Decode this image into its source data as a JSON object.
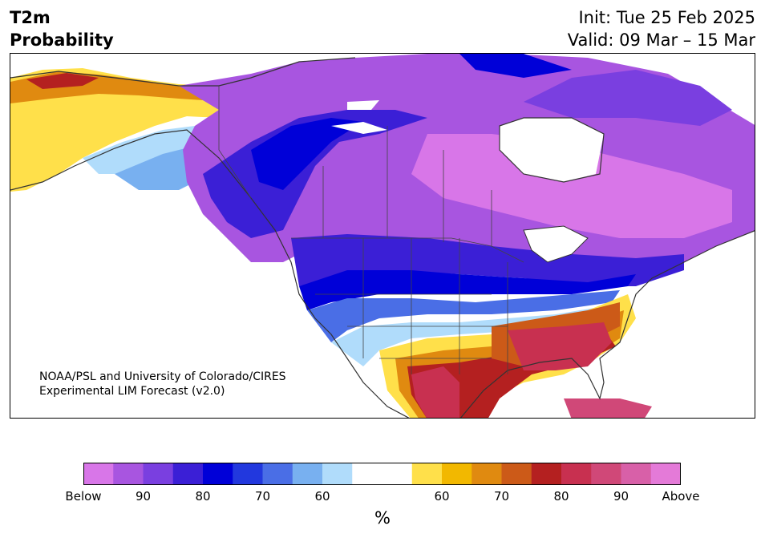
{
  "title": {
    "left_line1": "T2m",
    "left_line2": "Probability",
    "right_line1": "Init: Tue 25 Feb 2025",
    "right_line2": "Valid: 09 Mar – 15 Mar"
  },
  "credit": {
    "line1": "NOAA/PSL and University of Colorado/CIRES",
    "line2": "Experimental LIM Forecast (v2.0)"
  },
  "colorbar": {
    "colors": [
      "#d876e8",
      "#a855e0",
      "#7a3fe0",
      "#3b1fd6",
      "#0000d8",
      "#2238de",
      "#4a6ee6",
      "#78b0f0",
      "#b0dcfb",
      "#ffffff",
      "#ffffff",
      "#ffe04a",
      "#f2b800",
      "#e08a10",
      "#cc5a18",
      "#b42020",
      "#c83050",
      "#d04878",
      "#d860a8",
      "#e47ad8"
    ],
    "tick_labels": [
      "Below",
      "90",
      "80",
      "70",
      "60",
      "60",
      "70",
      "80",
      "90",
      "Above"
    ],
    "unit": "%"
  },
  "palette": {
    "below_extreme": "#d876e8",
    "below_strong": "#0000d8",
    "above_strong": "#b42020",
    "above_extreme": "#d04878",
    "land_outline": "#333333"
  }
}
